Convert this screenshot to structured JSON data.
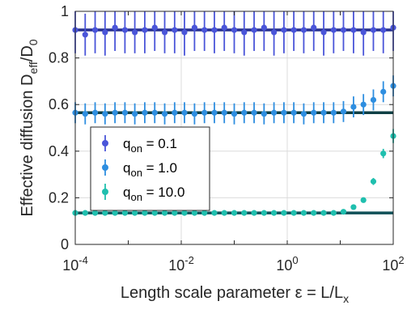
{
  "chart_data": {
    "type": "scatter",
    "x_scale": "log",
    "xlim": [
      0.0001,
      100
    ],
    "ylim": [
      0,
      1
    ],
    "grid": true,
    "legend_position": "lower-left",
    "xlabel": "Length scale parameter",
    "xlabel_math": "ε = L/L",
    "xlabel_sub": "x",
    "ylabel": "Effective diffusion D",
    "ylabel_sub1": "eff",
    "ylabel_mid": "/D",
    "ylabel_sub2": "0",
    "x_ticks": [
      {
        "value": 0.0001,
        "base": "10",
        "exp": "-4"
      },
      {
        "value": 0.01,
        "base": "10",
        "exp": "-2"
      },
      {
        "value": 1,
        "base": "10",
        "exp": "0"
      },
      {
        "value": 100,
        "base": "10",
        "exp": "2"
      }
    ],
    "y_ticks": [
      0,
      0.2,
      0.4,
      0.6,
      0.8,
      1
    ],
    "y_tick_labels": [
      "0",
      "0.2",
      "0.4",
      "0.6",
      "0.8",
      "1"
    ],
    "x": [
      0.0001,
      0.000154,
      0.000237,
      0.000365,
      0.000562,
      0.000866,
      0.00133,
      0.00205,
      0.00316,
      0.00487,
      0.0075,
      0.0115,
      0.0178,
      0.0274,
      0.0422,
      0.0649,
      0.1,
      0.154,
      0.237,
      0.365,
      0.562,
      0.866,
      1.33,
      2.05,
      3.16,
      4.87,
      7.5,
      11.5,
      17.8,
      27.4,
      42.2,
      64.9,
      100
    ],
    "series": [
      {
        "name": "q",
        "name_sub": "on",
        "name_suffix": " = 0.1",
        "color": "#4a55d9",
        "reference_level": 0.92,
        "reference_color": "#27308f",
        "values": [
          0.92,
          0.9,
          0.92,
          0.91,
          0.93,
          0.92,
          0.91,
          0.92,
          0.93,
          0.91,
          0.92,
          0.91,
          0.93,
          0.92,
          0.92,
          0.93,
          0.92,
          0.91,
          0.92,
          0.93,
          0.91,
          0.92,
          0.92,
          0.92,
          0.93,
          0.91,
          0.92,
          0.92,
          0.92,
          0.91,
          0.92,
          0.92,
          0.93
        ],
        "errors": [
          0.1,
          0.09,
          0.1,
          0.1,
          0.1,
          0.1,
          0.09,
          0.1,
          0.1,
          0.09,
          0.1,
          0.1,
          0.1,
          0.09,
          0.1,
          0.1,
          0.1,
          0.1,
          0.09,
          0.1,
          0.1,
          0.1,
          0.09,
          0.1,
          0.1,
          0.1,
          0.1,
          0.09,
          0.1,
          0.1,
          0.09,
          0.1,
          0.1
        ]
      },
      {
        "name": "q",
        "name_sub": "on",
        "name_suffix": " = 1.0",
        "color": "#2e8ee0",
        "reference_level": 0.565,
        "reference_color": "#0f3f44",
        "values": [
          0.565,
          0.56,
          0.565,
          0.56,
          0.565,
          0.565,
          0.56,
          0.565,
          0.565,
          0.56,
          0.565,
          0.565,
          0.56,
          0.565,
          0.565,
          0.565,
          0.56,
          0.565,
          0.565,
          0.56,
          0.565,
          0.565,
          0.565,
          0.56,
          0.565,
          0.565,
          0.565,
          0.57,
          0.59,
          0.6,
          0.62,
          0.655,
          0.68
        ],
        "errors": [
          0.045,
          0.045,
          0.045,
          0.045,
          0.045,
          0.045,
          0.045,
          0.045,
          0.045,
          0.045,
          0.045,
          0.045,
          0.045,
          0.045,
          0.045,
          0.045,
          0.045,
          0.045,
          0.045,
          0.045,
          0.045,
          0.045,
          0.045,
          0.045,
          0.045,
          0.045,
          0.045,
          0.045,
          0.045,
          0.045,
          0.045,
          0.045,
          0.045
        ]
      },
      {
        "name": "q",
        "name_sub": "on",
        "name_suffix": " = 10.0",
        "color": "#1fbfae",
        "reference_level": 0.135,
        "reference_color": "#0f4f57",
        "values": [
          0.135,
          0.135,
          0.135,
          0.135,
          0.135,
          0.135,
          0.135,
          0.135,
          0.135,
          0.135,
          0.135,
          0.135,
          0.135,
          0.135,
          0.135,
          0.135,
          0.135,
          0.135,
          0.135,
          0.135,
          0.135,
          0.135,
          0.135,
          0.135,
          0.135,
          0.135,
          0.135,
          0.14,
          0.16,
          0.19,
          0.27,
          0.39,
          0.465
        ],
        "errors": [
          0.006,
          0.006,
          0.006,
          0.006,
          0.006,
          0.006,
          0.006,
          0.006,
          0.006,
          0.006,
          0.006,
          0.006,
          0.006,
          0.006,
          0.006,
          0.006,
          0.006,
          0.006,
          0.006,
          0.006,
          0.006,
          0.006,
          0.006,
          0.006,
          0.006,
          0.006,
          0.006,
          0.006,
          0.008,
          0.01,
          0.015,
          0.02,
          0.03
        ]
      }
    ]
  }
}
